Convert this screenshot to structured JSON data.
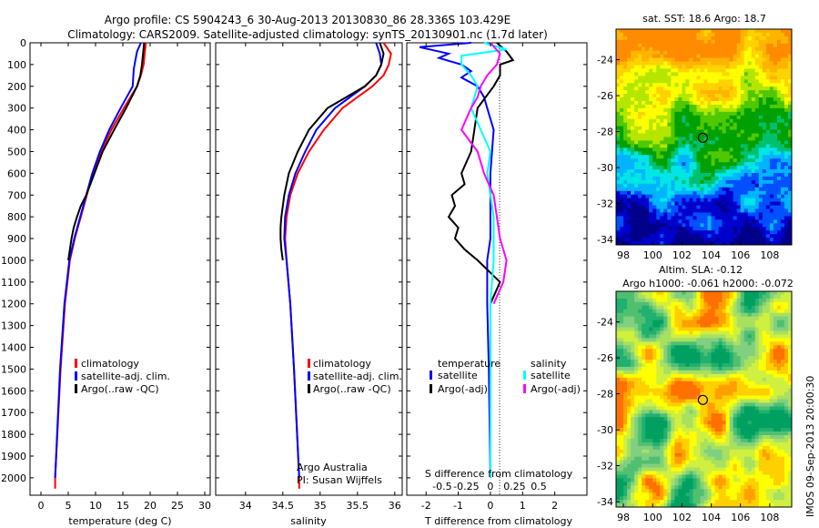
{
  "title_line1": "Argo profile: CS 5904243_6 30-Aug-2013 20130830_86 28.336S 103.429E",
  "title_line2": "Climatology: CARS2009. Satellite-adjusted climatology: synTS_20130901.nc (1.7d later)",
  "side_label": "IMOS 09-Sep-2013 20:00:30",
  "colors": {
    "red": "#ff0000",
    "blue": "#0000ff",
    "black": "#000000",
    "cyan": "#00ffff",
    "magenta": "#ff00ff"
  },
  "chart_data": [
    {
      "type": "line",
      "panel": "temperature",
      "xlabel": "temperature (deg C)",
      "xlim": [
        -2,
        31
      ],
      "xticks": [
        0,
        5,
        10,
        15,
        20,
        25,
        30
      ],
      "xticklabels": [
        "0",
        "5",
        "10",
        "15",
        "20",
        "25",
        "30"
      ],
      "ylim": [
        0,
        2080
      ],
      "yticks": [
        0,
        100,
        200,
        300,
        400,
        500,
        600,
        700,
        800,
        900,
        1000,
        1100,
        1200,
        1300,
        1400,
        1500,
        1600,
        1700,
        1800,
        1900,
        2000
      ],
      "yticklabels": [
        "0",
        "100",
        "200",
        "300",
        "400",
        "500",
        "600",
        "700",
        "800",
        "900",
        "1000",
        "1100",
        "1200",
        "1300",
        "1400",
        "1500",
        "1600",
        "1700",
        "1800",
        "1900",
        "2000"
      ],
      "legend": [
        "climatology",
        "satellite-adj. clim.",
        "Argo(..raw -QC)"
      ],
      "series": [
        {
          "name": "climatology",
          "color": "red",
          "depth": [
            0,
            50,
            100,
            150,
            200,
            300,
            400,
            500,
            600,
            700,
            800,
            900,
            1000,
            1200,
            1500,
            2000,
            2050
          ],
          "values": [
            19.2,
            19.0,
            18.8,
            18.3,
            17.6,
            15.2,
            12.9,
            11.0,
            9.5,
            8.4,
            7.3,
            6.2,
            5.3,
            4.4,
            3.6,
            2.6,
            2.6
          ]
        },
        {
          "name": "satellite-adj. clim.",
          "color": "blue",
          "depth": [
            0,
            40,
            80,
            120,
            200,
            300,
            400,
            500,
            600,
            700,
            800,
            900,
            1000,
            1200,
            1500,
            2000
          ],
          "values": [
            18.3,
            17.6,
            17.3,
            17.0,
            16.8,
            14.6,
            12.5,
            10.8,
            9.4,
            8.3,
            7.2,
            6.1,
            5.2,
            4.3,
            3.5,
            2.6
          ]
        },
        {
          "name": "Argo(..raw -QC)",
          "color": "black",
          "depth": [
            0,
            50,
            100,
            150,
            200,
            300,
            400,
            500,
            600,
            700,
            750,
            800,
            850,
            900,
            950,
            1000
          ],
          "values": [
            18.9,
            18.7,
            18.5,
            18.2,
            17.6,
            15.6,
            13.4,
            11.3,
            9.8,
            8.3,
            7.3,
            6.6,
            6.0,
            5.6,
            5.3,
            5.0
          ]
        }
      ]
    },
    {
      "type": "line",
      "panel": "salinity",
      "xlabel": "salinity",
      "xlim": [
        33.6,
        36.1
      ],
      "xticks": [
        34,
        34.5,
        35,
        35.5,
        36
      ],
      "xticklabels": [
        "34",
        "34.5",
        "35",
        "35.5",
        "36"
      ],
      "ylim": [
        0,
        2080
      ],
      "legend": [
        "climatology",
        "satellite-adj. clim.",
        "Argo(..raw -QC)"
      ],
      "annotations": [
        "Argo Australia",
        "PI: Susan Wijffels"
      ],
      "series": [
        {
          "name": "climatology",
          "color": "red",
          "depth": [
            0,
            50,
            100,
            150,
            200,
            250,
            300,
            400,
            500,
            600,
            700,
            800,
            900,
            1000,
            1200,
            1500,
            2000,
            2050
          ],
          "values": [
            35.85,
            35.95,
            35.92,
            35.85,
            35.7,
            35.5,
            35.3,
            35.05,
            34.85,
            34.7,
            34.6,
            34.55,
            34.53,
            34.55,
            34.6,
            34.65,
            34.72,
            34.72
          ]
        },
        {
          "name": "satellite-adj. clim.",
          "color": "blue",
          "depth": [
            0,
            50,
            100,
            150,
            200,
            250,
            300,
            400,
            500,
            600,
            700,
            800,
            900,
            1000,
            1200,
            1500,
            2000
          ],
          "values": [
            35.75,
            35.8,
            35.82,
            35.75,
            35.6,
            35.4,
            35.2,
            34.95,
            34.8,
            34.67,
            34.58,
            34.53,
            34.52,
            34.55,
            34.6,
            34.65,
            34.72
          ]
        },
        {
          "name": "Argo(..raw -QC)",
          "color": "black",
          "depth": [
            0,
            50,
            100,
            150,
            200,
            250,
            300,
            400,
            500,
            600,
            700,
            800,
            850,
            900,
            950,
            1000
          ],
          "values": [
            35.8,
            35.85,
            35.82,
            35.75,
            35.6,
            35.35,
            35.1,
            34.85,
            34.7,
            34.58,
            34.52,
            34.48,
            34.47,
            34.47,
            34.48,
            34.5
          ]
        }
      ]
    },
    {
      "type": "line",
      "panel": "difference",
      "xlabel": "T difference from climatology",
      "xlabel_top": "S difference from climatology",
      "xlim": [
        -2.6,
        3.0
      ],
      "xticks": [
        -2,
        -1,
        0,
        1,
        2
      ],
      "xticklabels": [
        "-2",
        "-1",
        "0",
        "1",
        "2"
      ],
      "sticks": [
        -1.5,
        -0.75,
        0,
        0.75,
        1.5
      ],
      "sticklabels": [
        "-0.5",
        "-0.25",
        "0",
        "0.25",
        "0.5"
      ],
      "ylim": [
        0,
        2080
      ],
      "legend_title_t": "temperature",
      "legend_title_s": "salinity",
      "legend_t": [
        "satellite",
        "Argo(-adj)"
      ],
      "legend_s": [
        "satellite",
        "Argo(-adj)"
      ],
      "series": [
        {
          "name": "satellite",
          "group": "temperature",
          "color": "blue",
          "depth": [
            0,
            20,
            50,
            70,
            100,
            130,
            160,
            200,
            250,
            300,
            400,
            500,
            600,
            700,
            800,
            900,
            1000,
            1200,
            1500,
            2000
          ],
          "values": [
            -0.6,
            -2.2,
            -1.3,
            -1.6,
            -0.9,
            -0.6,
            -0.9,
            -0.4,
            -0.2,
            -0.1,
            0.1,
            0.05,
            0.0,
            0.0,
            0.0,
            0.0,
            -0.1,
            -0.1,
            -0.05,
            0.0
          ]
        },
        {
          "name": "Argo(-adj)",
          "group": "temperature",
          "color": "black",
          "depth": [
            0,
            40,
            80,
            100,
            150,
            200,
            300,
            400,
            500,
            600,
            650,
            700,
            750,
            800,
            850,
            900,
            950,
            1000,
            1100,
            1200
          ],
          "values": [
            0.2,
            0.5,
            0.7,
            0.3,
            0.3,
            0.1,
            -0.4,
            -0.5,
            -0.6,
            -0.9,
            -0.8,
            -1.2,
            -1.1,
            -1.3,
            -1.0,
            -1.1,
            -0.8,
            -0.4,
            0.3,
            0.0
          ]
        },
        {
          "name": "satellite",
          "group": "salinity",
          "color": "cyan",
          "depth": [
            0,
            30,
            60,
            100,
            150,
            200,
            300,
            400,
            500,
            600,
            800,
            1000,
            1200,
            1500,
            2000
          ],
          "values": [
            -0.2,
            0.5,
            -0.9,
            -0.9,
            -0.6,
            -0.4,
            -0.6,
            -0.3,
            0.0,
            -0.1,
            0.1,
            0.1,
            0.0,
            0.0,
            0.0
          ]
        },
        {
          "name": "Argo(-adj)",
          "group": "salinity",
          "color": "magenta",
          "depth": [
            0,
            50,
            100,
            150,
            200,
            250,
            300,
            400,
            500,
            600,
            700,
            800,
            900,
            1000,
            1100,
            1200
          ],
          "values": [
            0.0,
            0.3,
            0.2,
            -0.1,
            -0.3,
            -0.4,
            -0.6,
            -0.9,
            -0.4,
            -0.2,
            0.1,
            0.2,
            0.3,
            0.5,
            0.4,
            0.1
          ]
        }
      ]
    },
    {
      "type": "heatmap",
      "panel": "sst",
      "title": "sat. SST: 18.6  Argo: 18.7",
      "xticklabels": [
        "98",
        "100",
        "102",
        "104",
        "106",
        "108"
      ],
      "yticklabels": [
        "-24",
        "-26",
        "-28",
        "-30",
        "-32",
        "-34"
      ],
      "xlim": [
        97.5,
        109.5
      ],
      "ylim": [
        -34.3,
        -22.3
      ],
      "marker": {
        "lon": 103.43,
        "lat": -28.34
      }
    },
    {
      "type": "heatmap",
      "panel": "sla",
      "title_line1": "Altim. SLA: -0.12",
      "title_line2": "Argo h1000: -0.061  h2000: -0.072",
      "xticklabels": [
        "98",
        "100",
        "102",
        "104",
        "106",
        "108"
      ],
      "yticklabels": [
        "-24",
        "-26",
        "-28",
        "-30",
        "-32",
        "-34"
      ],
      "xlim": [
        97.5,
        109.5
      ],
      "ylim": [
        -34.3,
        -22.3
      ],
      "marker": {
        "lon": 103.43,
        "lat": -28.34
      }
    }
  ]
}
